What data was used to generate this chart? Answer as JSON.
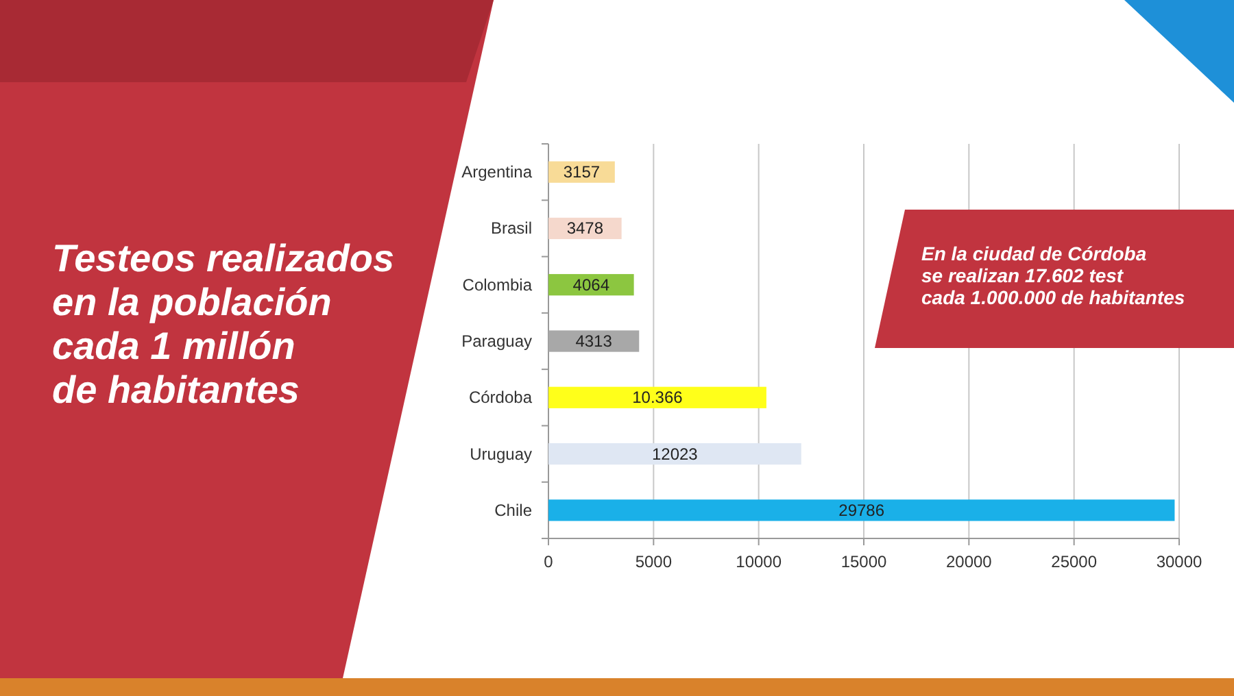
{
  "chart_data": {
    "type": "bar",
    "orientation": "horizontal",
    "title": "Testeos realizados\nen la población\ncada 1 millón\nde habitantes",
    "categories": [
      "Argentina",
      "Brasil",
      "Colombia",
      "Paraguay",
      "Córdoba",
      "Uruguay",
      "Chile"
    ],
    "values": [
      3157,
      3478,
      4064,
      4313,
      10366,
      12023,
      29786
    ],
    "colors": [
      "#f8db97",
      "#f5d8cc",
      "#8cc640",
      "#a8a8a8",
      "#ffff1a",
      "#dfe7f3",
      "#1ab0e8"
    ],
    "value_labels": [
      "3157",
      "3478",
      "4064",
      "4313",
      "10.366",
      "12023",
      "29786"
    ],
    "xlim": [
      0,
      30000
    ],
    "xticks": [
      0,
      5000,
      10000,
      15000,
      20000,
      25000,
      30000
    ],
    "grid": "x",
    "annotations": [
      "En la ciudad de Córdoba\nse realizan 17.602 test\ncada 1.000.000 de habitantes"
    ]
  }
}
